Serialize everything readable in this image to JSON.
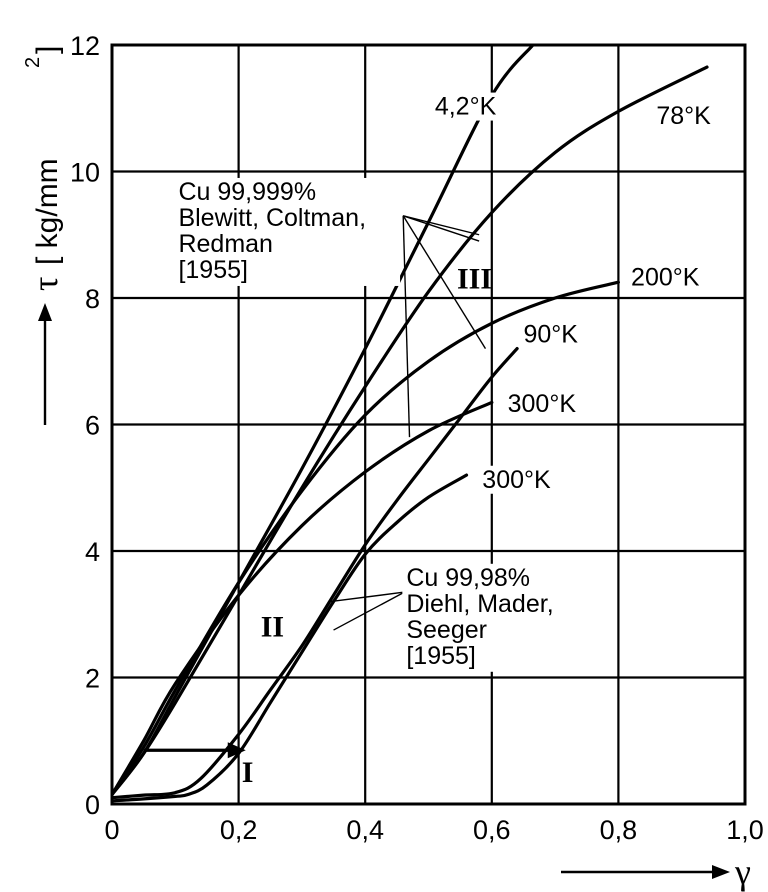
{
  "chart_data": {
    "type": "line",
    "xlabel": "γ",
    "ylabel_symbol": "τ",
    "ylabel_unit": "[ kg/mm",
    "ylabel_sup": "2",
    "ylabel_close": "]",
    "xlim": [
      0,
      1.0
    ],
    "ylim": [
      0,
      12
    ],
    "x_ticks": [
      {
        "v": 0,
        "label": "0"
      },
      {
        "v": 0.2,
        "label": "0,2"
      },
      {
        "v": 0.4,
        "label": "0,4"
      },
      {
        "v": 0.6,
        "label": "0,6"
      },
      {
        "v": 0.8,
        "label": "0,8"
      },
      {
        "v": 1.0,
        "label": "1,0"
      }
    ],
    "y_ticks": [
      {
        "v": 0,
        "label": "0"
      },
      {
        "v": 2,
        "label": "2"
      },
      {
        "v": 4,
        "label": "4"
      },
      {
        "v": 6,
        "label": "6"
      },
      {
        "v": 8,
        "label": "8"
      },
      {
        "v": 10,
        "label": "10"
      },
      {
        "v": 12,
        "label": "12"
      }
    ],
    "grid": true,
    "series": [
      {
        "name": "4,2°K",
        "x": [
          0,
          0.05,
          0.1,
          0.2,
          0.3,
          0.4,
          0.5,
          0.6,
          0.665
        ],
        "y": [
          0.15,
          0.8,
          1.7,
          3.5,
          5.3,
          7.2,
          9.2,
          11.2,
          12.0
        ]
      },
      {
        "name": "78°K",
        "x": [
          0,
          0.05,
          0.1,
          0.2,
          0.3,
          0.4,
          0.5,
          0.6,
          0.7,
          0.8,
          0.94
        ],
        "y": [
          0.15,
          0.8,
          1.6,
          3.3,
          5.0,
          6.6,
          8.1,
          9.35,
          10.3,
          10.95,
          11.65
        ]
      },
      {
        "name": "200°K",
        "x": [
          0,
          0.05,
          0.1,
          0.2,
          0.3,
          0.4,
          0.5,
          0.6,
          0.7,
          0.8
        ],
        "y": [
          0.15,
          0.9,
          1.8,
          3.5,
          4.95,
          6.15,
          7.0,
          7.6,
          8.0,
          8.25
        ]
      },
      {
        "name": "300°K",
        "x": [
          0,
          0.05,
          0.1,
          0.2,
          0.3,
          0.4,
          0.5,
          0.6
        ],
        "y": [
          0.15,
          1.0,
          1.9,
          3.3,
          4.4,
          5.25,
          5.9,
          6.35
        ]
      },
      {
        "name": "90°K",
        "x": [
          0,
          0.05,
          0.1,
          0.14,
          0.2,
          0.25,
          0.3,
          0.35,
          0.4,
          0.45,
          0.5,
          0.55,
          0.6,
          0.64
        ],
        "y": [
          0.1,
          0.14,
          0.18,
          0.4,
          1.1,
          1.8,
          2.5,
          3.3,
          4.1,
          4.8,
          5.45,
          6.1,
          6.75,
          7.2
        ]
      },
      {
        "name": "300°K",
        "x": [
          0,
          0.05,
          0.1,
          0.12,
          0.15,
          0.2,
          0.25,
          0.3,
          0.35,
          0.4,
          0.45,
          0.5,
          0.56
        ],
        "y": [
          0.05,
          0.08,
          0.12,
          0.15,
          0.3,
          0.8,
          1.6,
          2.4,
          3.2,
          3.95,
          4.45,
          4.85,
          5.2
        ]
      }
    ],
    "arrow_segment": {
      "x": [
        0.05,
        0.205
      ],
      "y": [
        0.85,
        0.85
      ]
    },
    "annotations": [
      {
        "text": "4,2°K",
        "x": 0.51,
        "y": 10.9
      },
      {
        "text": "78°K",
        "x": 0.86,
        "y": 10.75
      },
      {
        "text": "200°K",
        "x": 0.82,
        "y": 8.2
      },
      {
        "text": "90°K",
        "x": 0.65,
        "y": 7.3
      },
      {
        "text": "300°K",
        "x": 0.625,
        "y": 6.2
      },
      {
        "text": "300°K",
        "x": 0.585,
        "y": 5.0
      },
      {
        "text": "I",
        "x": 0.205,
        "y": 0.35,
        "roman": true
      },
      {
        "text": "II",
        "x": 0.235,
        "y": 2.65,
        "roman": true
      },
      {
        "text": "III",
        "x": 0.545,
        "y": 8.15,
        "roman": true
      }
    ],
    "legend_blocks": [
      {
        "lines": [
          "Cu 99,999%",
          "Blewitt, Coltman,",
          "Redman",
          "[1955]"
        ]
      },
      {
        "lines": [
          "Cu 99,98%",
          "Diehl, Mader,",
          "Seeger",
          "[1955]"
        ]
      }
    ]
  }
}
